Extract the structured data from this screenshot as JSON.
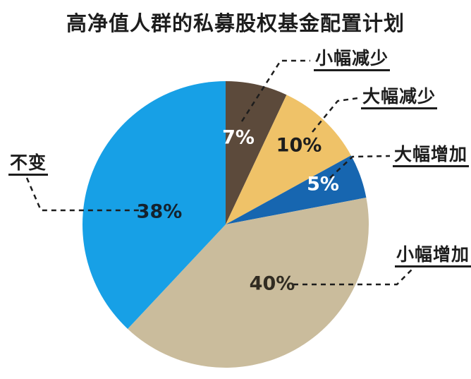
{
  "chart_data": {
    "type": "pie",
    "title": "高净值人群的私募股权基金配置计划",
    "unit": "%",
    "start_angle_deg": 0,
    "direction": "clockwise",
    "legend_position": "callout-labels",
    "text_color": "#1d1d1d",
    "background_color": "#ffffff",
    "leader_line_style": "dashed",
    "slices": [
      {
        "id": "small-decrease",
        "label": "小幅减少",
        "value": 7,
        "pct_label": "7%",
        "color": "#5C4A3B",
        "pct_color": "#ffffff"
      },
      {
        "id": "large-decrease",
        "label": "大幅减少",
        "value": 10,
        "pct_label": "10%",
        "color": "#EFC268",
        "pct_color": "#1d1d1d"
      },
      {
        "id": "large-increase",
        "label": "大幅增加",
        "value": 5,
        "pct_label": "5%",
        "color": "#1766B0",
        "pct_color": "#ffffff"
      },
      {
        "id": "small-increase",
        "label": "小幅增加",
        "value": 40,
        "pct_label": "40%",
        "color": "#CABC9C",
        "pct_color": "#312C22"
      },
      {
        "id": "unchanged",
        "label": "不变",
        "value": 38,
        "pct_label": "38%",
        "color": "#17A0E6",
        "pct_color": "#14222e"
      }
    ]
  }
}
